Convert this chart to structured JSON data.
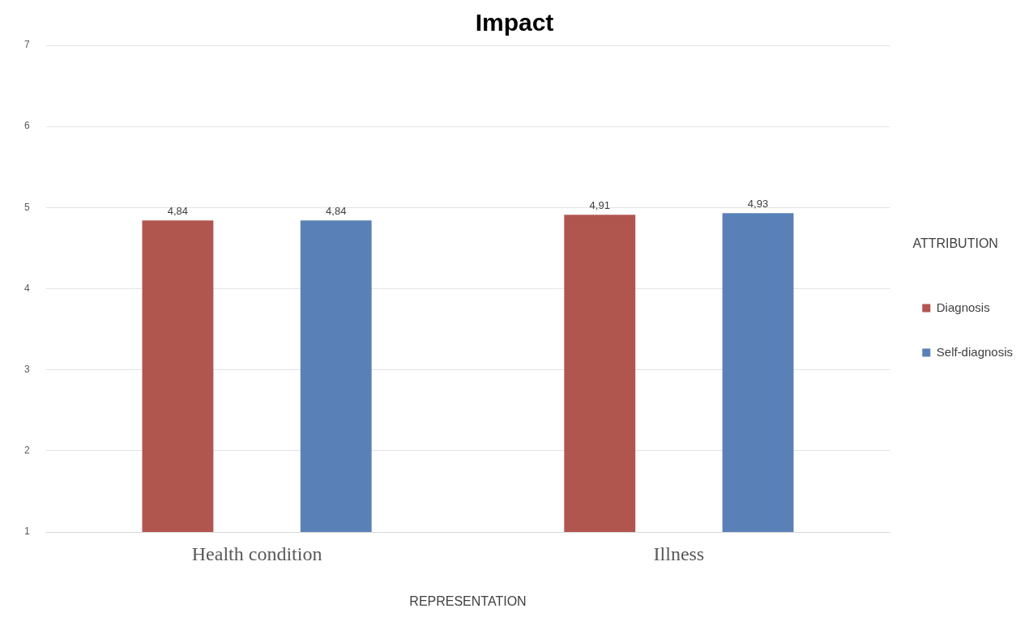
{
  "chart_data": {
    "type": "bar",
    "title": "Impact",
    "xlabel": "REPRESENTATION",
    "legend_title": "ATTRIBUTION",
    "categories": [
      "Health condition",
      "Illness"
    ],
    "series": [
      {
        "name": "Diagnosis",
        "color": "#b0564f",
        "values": [
          4.84,
          4.91
        ],
        "value_labels": [
          "4,84",
          "4,91"
        ]
      },
      {
        "name": "Self-diagnosis",
        "color": "#5a80b8",
        "values": [
          4.84,
          4.93
        ],
        "value_labels": [
          "4,84",
          "4,93"
        ]
      }
    ],
    "ylim": [
      1,
      7
    ],
    "yticks": [
      1,
      2,
      3,
      4,
      5,
      6,
      7
    ],
    "grid": "y",
    "legend": "right"
  }
}
